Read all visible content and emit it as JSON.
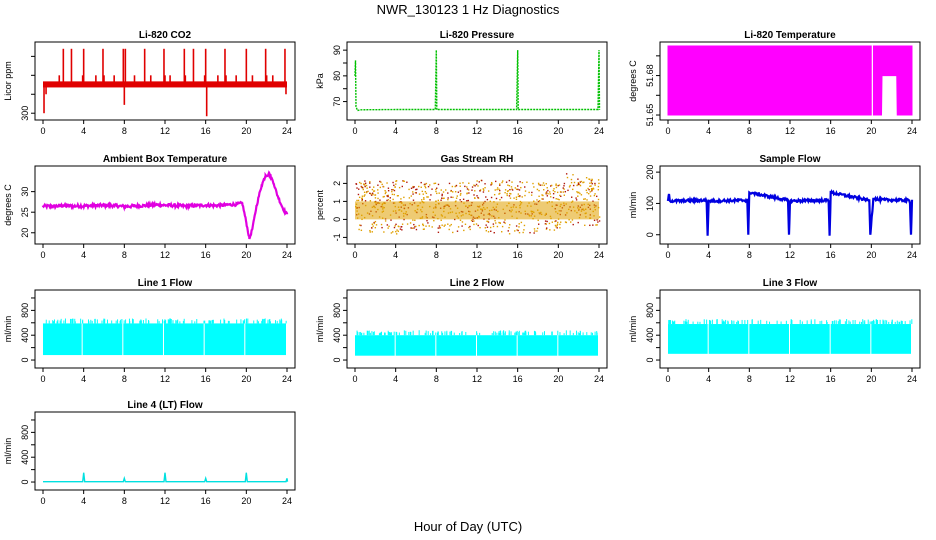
{
  "figure": {
    "title": "NWR_130123  1 Hz Diagnostics",
    "xlabel": "Hour of Day (UTC)"
  },
  "chart_data": [
    {
      "type": "line",
      "title": "Li-820 CO2",
      "ylabel": "Licor ppm",
      "color": "#e00000",
      "xlim": [
        0,
        24
      ],
      "xticks": [
        0,
        4,
        8,
        12,
        16,
        20,
        24
      ],
      "ylim": [
        290,
        480
      ],
      "yticks": [
        300,
        350,
        400,
        450
      ],
      "ytick_labels": [
        "300",
        "",
        "",
        ""
      ],
      "series": [
        {
          "name": "",
          "style": "baseline_band",
          "x": [
            0,
            24
          ],
          "y": [
            376,
            376
          ],
          "band": 8
        },
        {
          "name": "",
          "style": "spikes",
          "x": [
            0.1,
            0.3,
            1.6,
            2.0,
            2.8,
            3.9,
            4.0,
            5.2,
            5.9,
            6.0,
            7.0,
            7.9,
            8.0,
            8.1,
            9.0,
            10.0,
            10.6,
            11.9,
            12.0,
            12.5,
            13.9,
            14.0,
            14.8,
            15.9,
            16.0,
            16.1,
            17.2,
            17.9,
            18.0,
            19.0,
            20.0,
            20.6,
            21.9,
            22.0,
            22.6,
            23.8,
            23.9
          ],
          "y": [
            300,
            350,
            400,
            470,
            470,
            400,
            470,
            400,
            470,
            400,
            400,
            470,
            322,
            470,
            400,
            470,
            400,
            470,
            400,
            400,
            470,
            400,
            470,
            400,
            470,
            292,
            400,
            470,
            400,
            400,
            470,
            400,
            470,
            400,
            400,
            470,
            350
          ]
        }
      ]
    },
    {
      "type": "line",
      "title": "Li-820 Pressure",
      "ylabel": "kPa",
      "color": "#00c000",
      "xlim": [
        0,
        24
      ],
      "xticks": [
        0,
        4,
        8,
        12,
        16,
        20,
        24
      ],
      "ylim": [
        64,
        92
      ],
      "yticks": [
        70,
        75,
        80,
        85,
        90
      ],
      "ytick_labels": [
        "70",
        "",
        "80",
        "",
        "90"
      ],
      "series": [
        {
          "name": "",
          "x": [
            0,
            0.05,
            0.1,
            0.25,
            0.5,
            4,
            7.9,
            8.0,
            8.05,
            8.2,
            12,
            15.9,
            16.0,
            16.05,
            16.2,
            20,
            23.9,
            24.0,
            24.05
          ],
          "y": [
            80,
            86,
            68,
            66.5,
            66.8,
            66.9,
            66.9,
            90,
            66.8,
            66.9,
            66.9,
            66.9,
            90,
            66.8,
            66.9,
            66.9,
            66.9,
            90,
            66.8
          ]
        }
      ]
    },
    {
      "type": "area",
      "title": "Li-820 Temperature",
      "ylabel": "degrees C",
      "color": "#ff00ff",
      "xlim": [
        0,
        24
      ],
      "xticks": [
        0,
        4,
        8,
        12,
        16,
        20,
        24
      ],
      "ylim": [
        51.649,
        51.6855
      ],
      "yticks": [
        51.65,
        51.66,
        51.67,
        51.68
      ],
      "ytick_labels": [
        "51.65",
        "",
        "51.68",
        ""
      ],
      "series": [
        {
          "name": "",
          "x": [
            0,
            20.1,
            20.15,
            21.0,
            21.05,
            22.5,
            22.55,
            23.7,
            23.75,
            24
          ],
          "low": [
            51.65,
            51.65,
            51.65,
            51.65,
            51.67,
            51.67,
            51.65,
            51.65,
            51.65,
            51.65
          ],
          "high": [
            51.685,
            51.685,
            51.685,
            51.685,
            51.685,
            51.685,
            51.685,
            51.685,
            51.685,
            51.685
          ]
        }
      ]
    },
    {
      "type": "line",
      "title": "Ambient Box Temperature",
      "ylabel": "degrees C",
      "color": "#e000e0",
      "xlim": [
        0,
        24
      ],
      "xticks": [
        0,
        4,
        8,
        12,
        16,
        20,
        24
      ],
      "ylim": [
        18,
        35.5
      ],
      "yticks": [
        20,
        25,
        30
      ],
      "ytick_labels": [
        "20",
        "25",
        "30"
      ],
      "series": [
        {
          "name": "",
          "x": [
            0,
            1,
            2,
            3,
            4,
            5,
            6,
            7,
            8,
            9,
            10,
            11,
            12,
            13,
            14,
            15,
            16,
            17,
            18,
            19,
            19.6,
            20.0,
            20.3,
            20.6,
            21.0,
            21.5,
            21.9,
            22.3,
            22.7,
            23.0,
            23.4,
            23.8,
            24.0
          ],
          "y": [
            26.5,
            26.4,
            26.6,
            26.5,
            26.5,
            26.6,
            26.7,
            26.6,
            26.4,
            26.5,
            26.6,
            26.8,
            26.7,
            26.6,
            26.5,
            26.6,
            26.7,
            26.6,
            26.8,
            26.9,
            27.2,
            22.5,
            18.5,
            21.0,
            26.5,
            31.5,
            34.0,
            34.2,
            32.0,
            29.5,
            27.0,
            25.0,
            24.5
          ],
          "noise": 0.35
        }
      ]
    },
    {
      "type": "scatter",
      "title": "Gas Stream RH",
      "ylabel": "percent",
      "color": "#e0a000",
      "color2": "#b0180c",
      "xlim": [
        0,
        24
      ],
      "xticks": [
        0,
        4,
        8,
        12,
        16,
        20,
        24
      ],
      "ylim": [
        -1.2,
        2.8
      ],
      "yticks": [
        -1,
        0,
        1,
        2
      ],
      "ytick_labels": [
        "-1",
        "0",
        "1",
        "2"
      ],
      "series": [
        {
          "name": "",
          "x": [
            0,
            4,
            8,
            12,
            16,
            20,
            20.5,
            24
          ],
          "low": [
            -0.7,
            -0.8,
            -0.7,
            -0.7,
            -0.8,
            -0.6,
            -0.3,
            -0.3
          ],
          "high": [
            2.2,
            2.2,
            2.1,
            2.2,
            2.3,
            2.0,
            2.6,
            2.3
          ]
        }
      ]
    },
    {
      "type": "line",
      "title": "Sample Flow",
      "ylabel": "ml/min",
      "color": "#0000e0",
      "xlim": [
        0,
        24
      ],
      "xticks": [
        0,
        4,
        8,
        12,
        16,
        20,
        24
      ],
      "ylim": [
        -20,
        210
      ],
      "yticks": [
        0,
        100,
        200
      ],
      "ytick_labels": [
        "0",
        "100",
        "200"
      ],
      "series": [
        {
          "name": "",
          "x": [
            0,
            0.1,
            0.2,
            3.8,
            3.9,
            4.0,
            7.8,
            7.9,
            8.0,
            11.8,
            11.9,
            12.0,
            15.8,
            15.9,
            16.0,
            19.8,
            19.9,
            20.2,
            20.6,
            23.7,
            23.8,
            23.9,
            24.0
          ],
          "y": [
            108,
            130,
            108,
            110,
            0,
            108,
            110,
            0,
            135,
            110,
            0,
            108,
            110,
            0,
            135,
            110,
            0,
            118,
            112,
            110,
            100,
            0,
            110
          ],
          "noise": 4
        }
      ]
    },
    {
      "type": "area",
      "title": "Line 1 Flow",
      "ylabel": "ml/min",
      "color": "#00ffff",
      "xlim": [
        0,
        24
      ],
      "xticks": [
        0,
        4,
        8,
        12,
        16,
        20,
        24
      ],
      "ylim": [
        -80,
        1080
      ],
      "yticks": [
        0,
        200,
        400,
        600,
        800,
        1000
      ],
      "ytick_labels": [
        "0",
        "",
        "400",
        "",
        "800",
        ""
      ],
      "series": [
        {
          "name": "",
          "low": 80,
          "high": 590,
          "gaps": [
            3.9,
            7.9,
            11.9,
            15.9,
            19.9
          ],
          "end": 24
        }
      ]
    },
    {
      "type": "area",
      "title": "Line 2 Flow",
      "ylabel": "ml/min",
      "color": "#00ffff",
      "xlim": [
        0,
        24
      ],
      "xticks": [
        0,
        4,
        8,
        12,
        16,
        20,
        24
      ],
      "ylim": [
        -80,
        1080
      ],
      "yticks": [
        0,
        200,
        400,
        600,
        800,
        1000
      ],
      "ytick_labels": [
        "0",
        "",
        "400",
        "",
        "800",
        ""
      ],
      "series": [
        {
          "name": "",
          "low": 70,
          "high": 400,
          "gaps": [
            4.0,
            8.0,
            12.0,
            16.0,
            20.0
          ],
          "end": 24
        }
      ]
    },
    {
      "type": "area",
      "title": "Line 3 Flow",
      "ylabel": "ml/min",
      "color": "#00ffff",
      "xlim": [
        0,
        24
      ],
      "xticks": [
        0,
        4,
        8,
        12,
        16,
        20,
        24
      ],
      "ylim": [
        -80,
        1080
      ],
      "yticks": [
        0,
        200,
        400,
        600,
        800,
        1000
      ],
      "ytick_labels": [
        "0",
        "",
        "400",
        "",
        "800",
        ""
      ],
      "series": [
        {
          "name": "",
          "low": 100,
          "high": 580,
          "gaps": [
            4.0,
            8.0,
            12.0,
            16.0,
            20.0
          ],
          "end": 24
        }
      ]
    },
    {
      "type": "line",
      "title": "Line 4 (LT) Flow",
      "ylabel": "ml/min",
      "color": "#00e0e0",
      "xlim": [
        0,
        24
      ],
      "xticks": [
        0,
        4,
        8,
        12,
        16,
        20,
        24
      ],
      "ylim": [
        -80,
        1080
      ],
      "yticks": [
        0,
        200,
        400,
        600,
        800,
        1000
      ],
      "ytick_labels": [
        "0",
        "",
        "400",
        "",
        "800",
        ""
      ],
      "series": [
        {
          "name": "",
          "x": [
            0,
            3.9,
            4.0,
            4.1,
            7.9,
            8.0,
            8.1,
            11.9,
            12.0,
            12.1,
            15.9,
            16.0,
            16.1,
            19.9,
            20.0,
            20.1,
            23.9,
            24.0,
            24.05
          ],
          "y": [
            5,
            5,
            150,
            5,
            5,
            60,
            5,
            5,
            150,
            5,
            5,
            60,
            5,
            5,
            150,
            5,
            5,
            60,
            5
          ]
        }
      ]
    }
  ]
}
